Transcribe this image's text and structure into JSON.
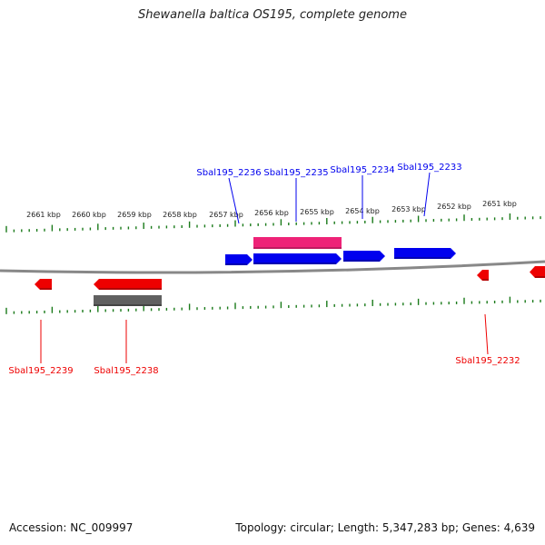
{
  "title": "Shewanella baltica OS195, complete genome",
  "footer": {
    "accession": "Accession: NC_009997",
    "summary": "Topology: circular; Length: 5,347,283 bp; Genes: 4,639"
  },
  "colors": {
    "forward": "#0000ee",
    "reverse": "#ee0000",
    "pink": "#ee2277",
    "gray": "#606060",
    "ticks": "#1a7a1a",
    "backbone": "#888888"
  },
  "scale": {
    "unit": "kbp",
    "labels": [
      "2661 kbp",
      "2660 kbp",
      "2659 kbp",
      "2658 kbp",
      "2657 kbp",
      "2656 kbp",
      "2655 kbp",
      "2654 kbp",
      "2653 kbp",
      "2652 kbp",
      "2651 kbp"
    ]
  },
  "genes": [
    {
      "name": "Sbal195_2236",
      "strand": "forward"
    },
    {
      "name": "Sbal195_2235",
      "strand": "forward"
    },
    {
      "name": "Sbal195_2234",
      "strand": "forward"
    },
    {
      "name": "Sbal195_2233",
      "strand": "forward"
    },
    {
      "name": "Sbal195_2239",
      "strand": "reverse"
    },
    {
      "name": "Sbal195_2238",
      "strand": "reverse"
    },
    {
      "name": "Sbal195_2232",
      "strand": "reverse"
    }
  ]
}
